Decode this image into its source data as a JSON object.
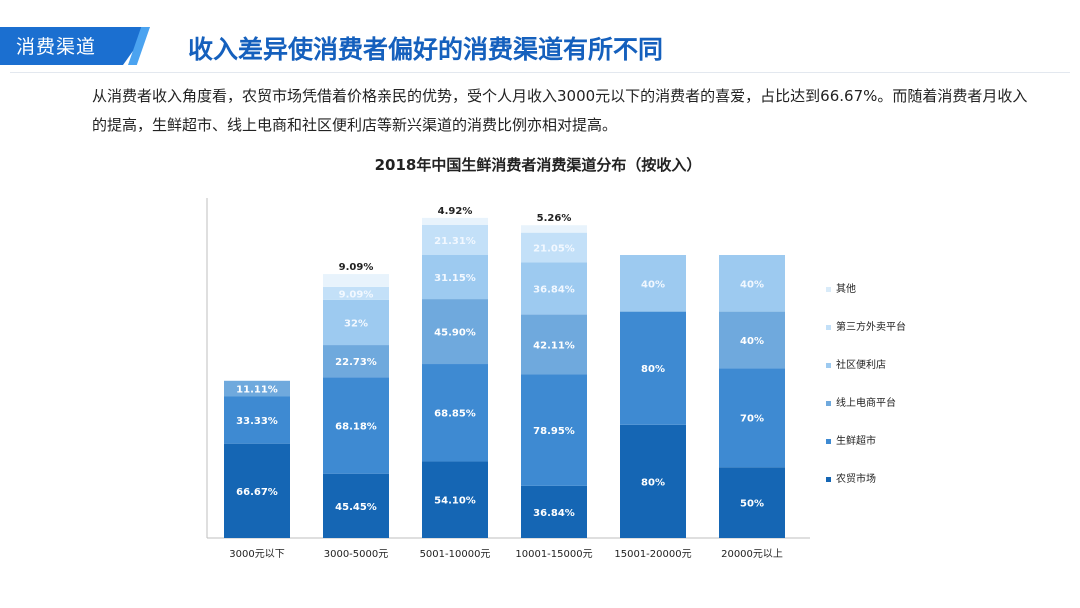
{
  "section_tag": "消费渠道",
  "page_title": "收入差异使消费者偏好的消费渠道有所不同",
  "description": "从消费者收入角度看，农贸市场凭借着价格亲民的优势，受个人月收入3000元以下的消费者的喜爱，占比达到66.67%。而随着消费者月收入的提高，生鲜超市、线上电商和社区便利店等新兴渠道的消费比例亦相对提高。",
  "chart_data": {
    "type": "bar",
    "stacked": true,
    "title": "2018年中国生鲜消费者消费渠道分布（按收入）",
    "xlabel": "",
    "ylabel": "",
    "categories": [
      "3000元以下",
      "3000-5000元",
      "5001-10000元",
      "10001-15000元",
      "15001-20000元",
      "20000元以上"
    ],
    "series": [
      {
        "name": "农贸市场",
        "color": "#1566b4",
        "values": [
          66.67,
          45.45,
          54.1,
          36.84,
          80,
          50
        ],
        "labels": [
          "66.67%",
          "45.45%",
          "54.10%",
          "36.84%",
          "80%",
          "50%"
        ]
      },
      {
        "name": "生鲜超市",
        "color": "#3e8ad2",
        "values": [
          33.33,
          68.18,
          68.85,
          78.95,
          80,
          70
        ],
        "labels": [
          "33.33%",
          "68.18%",
          "68.85%",
          "78.95%",
          "80%",
          "70%"
        ]
      },
      {
        "name": "线上电商平台",
        "color": "#6fa9dd",
        "values": [
          11.11,
          22.73,
          45.9,
          42.11,
          0,
          40
        ],
        "labels": [
          "11.11%",
          "22.73%",
          "45.90%",
          "42.11%",
          "",
          "40%"
        ]
      },
      {
        "name": "社区便利店",
        "color": "#9dcaf0",
        "values": [
          0,
          32,
          31.15,
          36.84,
          40,
          40
        ],
        "labels": [
          "",
          "32%",
          "31.15%",
          "36.84%",
          "40%",
          "40%"
        ]
      },
      {
        "name": "第三方外卖平台",
        "color": "#c3e0f8",
        "values": [
          0,
          9.09,
          21.31,
          21.05,
          0,
          0
        ],
        "labels": [
          "",
          "9.09%",
          "21.31%",
          "21.05%",
          "",
          ""
        ]
      },
      {
        "name": "其他",
        "color": "#e8f3fc",
        "values": [
          0,
          9.09,
          4.92,
          5.26,
          0,
          0
        ],
        "labels": [
          "",
          "9.09%",
          "4.92%",
          "5.26%",
          "",
          ""
        ]
      }
    ],
    "legend_position": "right",
    "grid": false
  }
}
